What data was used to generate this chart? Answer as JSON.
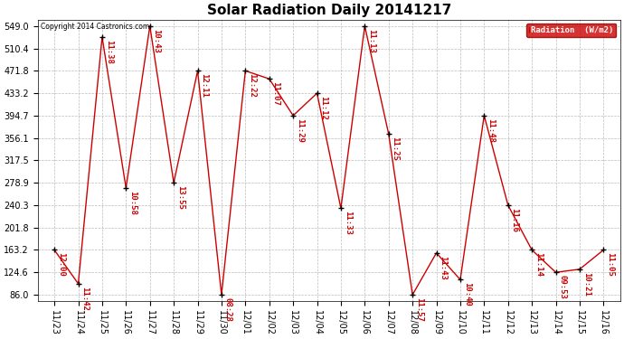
{
  "title": "Solar Radiation Daily 20141217",
  "copyright": "Copyright 2014 Castronics.com",
  "legend_label": "Radiation  (W/m2)",
  "x_labels": [
    "11/23",
    "11/24",
    "11/25",
    "11/26",
    "11/27",
    "11/28",
    "11/29",
    "11/30",
    "12/01",
    "12/02",
    "12/03",
    "12/04",
    "12/05",
    "12/06",
    "12/07",
    "12/08",
    "12/09",
    "12/10",
    "12/11",
    "12/12",
    "12/13",
    "12/14",
    "12/15",
    "12/16"
  ],
  "y_values": [
    163.2,
    105.0,
    530.0,
    270.0,
    549.0,
    278.9,
    471.8,
    86.0,
    471.8,
    458.0,
    394.7,
    433.2,
    235.0,
    549.0,
    363.0,
    86.0,
    158.0,
    112.0,
    394.7,
    240.3,
    163.2,
    124.6,
    130.0,
    163.2
  ],
  "time_labels": [
    "12:00",
    "11:42",
    "11:38",
    "10:58",
    "10:43",
    "13:55",
    "12:11",
    "08:28",
    "12:22",
    "11:07",
    "11:29",
    "11:12",
    "11:33",
    "11:13",
    "11:25",
    "11:57",
    "11:43",
    "10:40",
    "11:48",
    "11:16",
    "11:14",
    "09:53",
    "10:21",
    "11:05"
  ],
  "y_ticks": [
    86.0,
    124.6,
    163.2,
    201.8,
    240.3,
    278.9,
    317.5,
    356.1,
    394.7,
    433.2,
    471.8,
    510.4,
    549.0
  ],
  "line_color": "#cc0000",
  "marker_color": "#000000",
  "bg_color": "#ffffff",
  "grid_color": "#bbbbbb",
  "title_fontsize": 11,
  "label_fontsize": 7,
  "annotation_fontsize": 6.5,
  "legend_bg": "#cc0000",
  "legend_text_color": "#ffffff"
}
